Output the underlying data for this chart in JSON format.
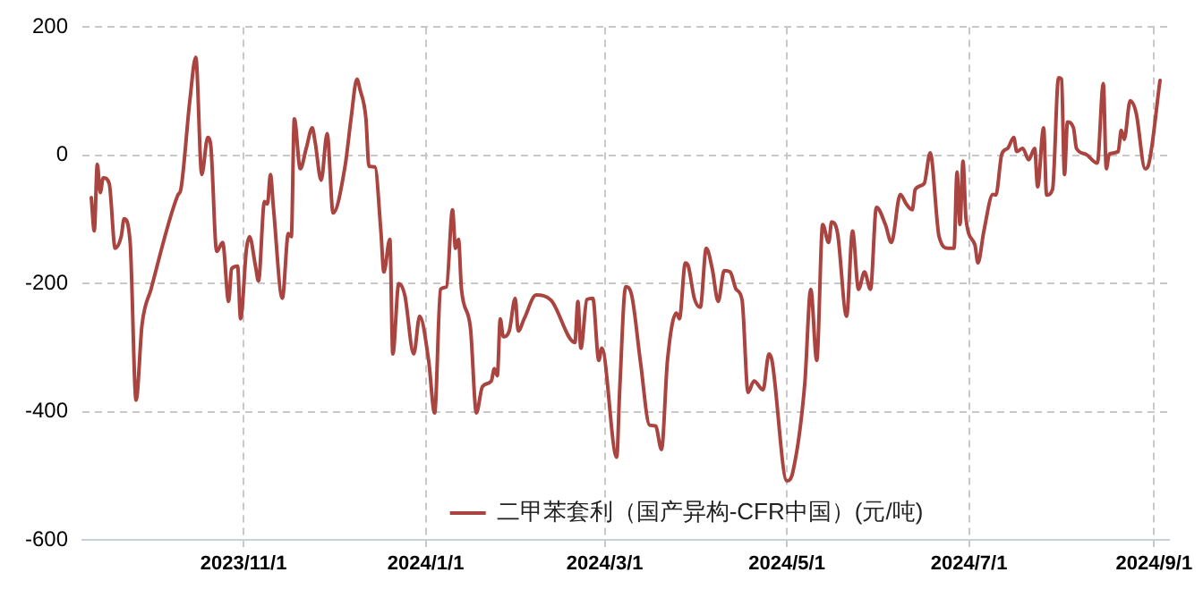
{
  "chart_data": {
    "type": "line",
    "legend": "bottom",
    "grid": true,
    "line_style": "solid",
    "marker": "none",
    "xlim": [
      "2023-09-08",
      "2024-09-06"
    ],
    "xticks": [
      {
        "value": "2023-11-01",
        "label": "2023/11/1"
      },
      {
        "value": "2024-01-01",
        "label": "2024/1/1"
      },
      {
        "value": "2024-03-01",
        "label": "2024/3/1"
      },
      {
        "value": "2024-05-01",
        "label": "2024/5/1"
      },
      {
        "value": "2024-07-01",
        "label": "2024/7/1"
      },
      {
        "value": "2024-09-01",
        "label": "2024/9/1"
      }
    ],
    "ylim": [
      -600,
      200
    ],
    "yticks": [
      -600,
      -400,
      -200,
      0,
      200
    ],
    "series": [
      {
        "name": "二甲苯套利（国产异构-CFR中国）(元/吨)",
        "color": "#aa4440",
        "x": [
          "2023-09-11",
          "2023-09-12",
          "2023-09-13",
          "2023-09-14",
          "2023-09-15",
          "2023-09-17",
          "2023-09-19",
          "2023-09-21",
          "2023-09-22",
          "2023-09-24",
          "2023-09-26",
          "2023-09-28",
          "2023-10-01",
          "2023-10-10",
          "2023-10-11",
          "2023-10-14",
          "2023-10-16",
          "2023-10-18",
          "2023-10-20",
          "2023-10-21",
          "2023-10-23",
          "2023-10-25",
          "2023-10-27",
          "2023-10-28",
          "2023-10-30",
          "2023-10-31",
          "2023-11-02",
          "2023-11-03",
          "2023-11-05",
          "2023-11-06",
          "2023-11-08",
          "2023-11-09",
          "2023-11-10",
          "2023-11-11",
          "2023-11-14",
          "2023-11-16",
          "2023-11-17",
          "2023-11-18",
          "2023-11-20",
          "2023-11-22",
          "2023-11-24",
          "2023-11-25",
          "2023-11-27",
          "2023-11-29",
          "2023-12-01",
          "2023-12-05",
          "2023-12-07",
          "2023-12-09",
          "2023-12-10",
          "2023-12-12",
          "2023-12-13",
          "2023-12-15",
          "2023-12-17",
          "2023-12-18",
          "2023-12-20",
          "2023-12-21",
          "2023-12-23",
          "2023-12-25",
          "2023-12-28",
          "2023-12-30",
          "2024-01-02",
          "2024-01-04",
          "2024-01-06",
          "2024-01-08",
          "2024-01-10",
          "2024-01-11",
          "2024-01-12",
          "2024-01-13",
          "2024-01-16",
          "2024-01-18",
          "2024-01-20",
          "2024-01-23",
          "2024-01-24",
          "2024-01-25",
          "2024-01-26",
          "2024-01-27",
          "2024-01-29",
          "2024-01-31",
          "2024-02-01",
          "2024-02-03",
          "2024-02-07",
          "2024-02-12",
          "2024-02-20",
          "2024-02-21",
          "2024-02-22",
          "2024-02-24",
          "2024-02-26",
          "2024-02-28",
          "2024-02-29",
          "2024-03-05",
          "2024-03-06",
          "2024-03-08",
          "2024-03-10",
          "2024-03-13",
          "2024-03-16",
          "2024-03-18",
          "2024-03-20",
          "2024-03-22",
          "2024-03-25",
          "2024-03-26",
          "2024-03-28",
          "2024-03-29",
          "2024-03-31",
          "2024-04-02",
          "2024-04-04",
          "2024-04-06",
          "2024-04-08",
          "2024-04-10",
          "2024-04-12",
          "2024-04-14",
          "2024-04-16",
          "2024-04-18",
          "2024-04-20",
          "2024-04-23",
          "2024-04-25",
          "2024-04-26",
          "2024-05-01",
          "2024-05-03",
          "2024-05-07",
          "2024-05-09",
          "2024-05-11",
          "2024-05-13",
          "2024-05-15",
          "2024-05-16",
          "2024-05-18",
          "2024-05-21",
          "2024-05-23",
          "2024-05-25",
          "2024-05-27",
          "2024-05-29",
          "2024-05-31",
          "2024-06-03",
          "2024-06-05",
          "2024-06-08",
          "2024-06-10",
          "2024-06-12",
          "2024-06-13",
          "2024-06-16",
          "2024-06-18",
          "2024-06-21",
          "2024-06-24",
          "2024-06-26",
          "2024-06-27",
          "2024-06-28",
          "2024-06-29",
          "2024-06-30",
          "2024-07-03",
          "2024-07-04",
          "2024-07-06",
          "2024-07-09",
          "2024-07-10",
          "2024-07-12",
          "2024-07-14",
          "2024-07-16",
          "2024-07-17",
          "2024-07-19",
          "2024-07-21",
          "2024-07-23",
          "2024-07-24",
          "2024-07-26",
          "2024-07-27",
          "2024-07-29",
          "2024-07-31",
          "2024-08-01",
          "2024-08-02",
          "2024-08-03",
          "2024-08-05",
          "2024-08-06",
          "2024-08-09",
          "2024-08-13",
          "2024-08-15",
          "2024-08-16",
          "2024-08-17",
          "2024-08-20",
          "2024-08-21",
          "2024-08-22",
          "2024-08-24",
          "2024-08-26",
          "2024-08-29",
          "2024-08-30",
          "2024-09-03"
        ],
        "values": [
          -66,
          -118,
          -14,
          -58,
          -35,
          -44,
          -145,
          -127,
          -99,
          -135,
          -382,
          -264,
          -209,
          -62,
          -53,
          85,
          153,
          -30,
          28,
          16,
          -150,
          -136,
          -228,
          -177,
          -173,
          -255,
          -145,
          -127,
          -173,
          -196,
          -72,
          -76,
          -30,
          -81,
          -223,
          -122,
          -127,
          57,
          -21,
          11,
          43,
          20,
          -39,
          34,
          -90,
          -17,
          57,
          119,
          103,
          57,
          -17,
          -18,
          -118,
          -182,
          -131,
          -310,
          -200,
          -218,
          -310,
          -251,
          -320,
          -402,
          -209,
          -205,
          -85,
          -145,
          -131,
          -209,
          -269,
          -402,
          -361,
          -352,
          -333,
          -344,
          -255,
          -283,
          -274,
          -223,
          -274,
          -255,
          -218,
          -226,
          -292,
          -228,
          -301,
          -225,
          -223,
          -320,
          -301,
          -471,
          -366,
          -205,
          -218,
          -324,
          -421,
          -422,
          -459,
          -320,
          -246,
          -255,
          -168,
          -173,
          -223,
          -237,
          -145,
          -177,
          -228,
          -180,
          -182,
          -209,
          -226,
          -370,
          -352,
          -366,
          -310,
          -320,
          -508,
          -494,
          -356,
          -209,
          -320,
          -108,
          -136,
          -104,
          -122,
          -251,
          -118,
          -209,
          -182,
          -209,
          -81,
          -108,
          -136,
          -61,
          -76,
          -85,
          -53,
          -44,
          4,
          -127,
          -145,
          -145,
          -26,
          -108,
          -9,
          -99,
          -140,
          -168,
          -118,
          -61,
          -62,
          2,
          11,
          28,
          6,
          11,
          -7,
          11,
          -49,
          43,
          -62,
          -53,
          121,
          119,
          -30,
          52,
          43,
          11,
          2,
          -12,
          112,
          -21,
          2,
          6,
          39,
          25,
          85,
          66,
          -21,
          -17,
          117
        ]
      }
    ]
  }
}
